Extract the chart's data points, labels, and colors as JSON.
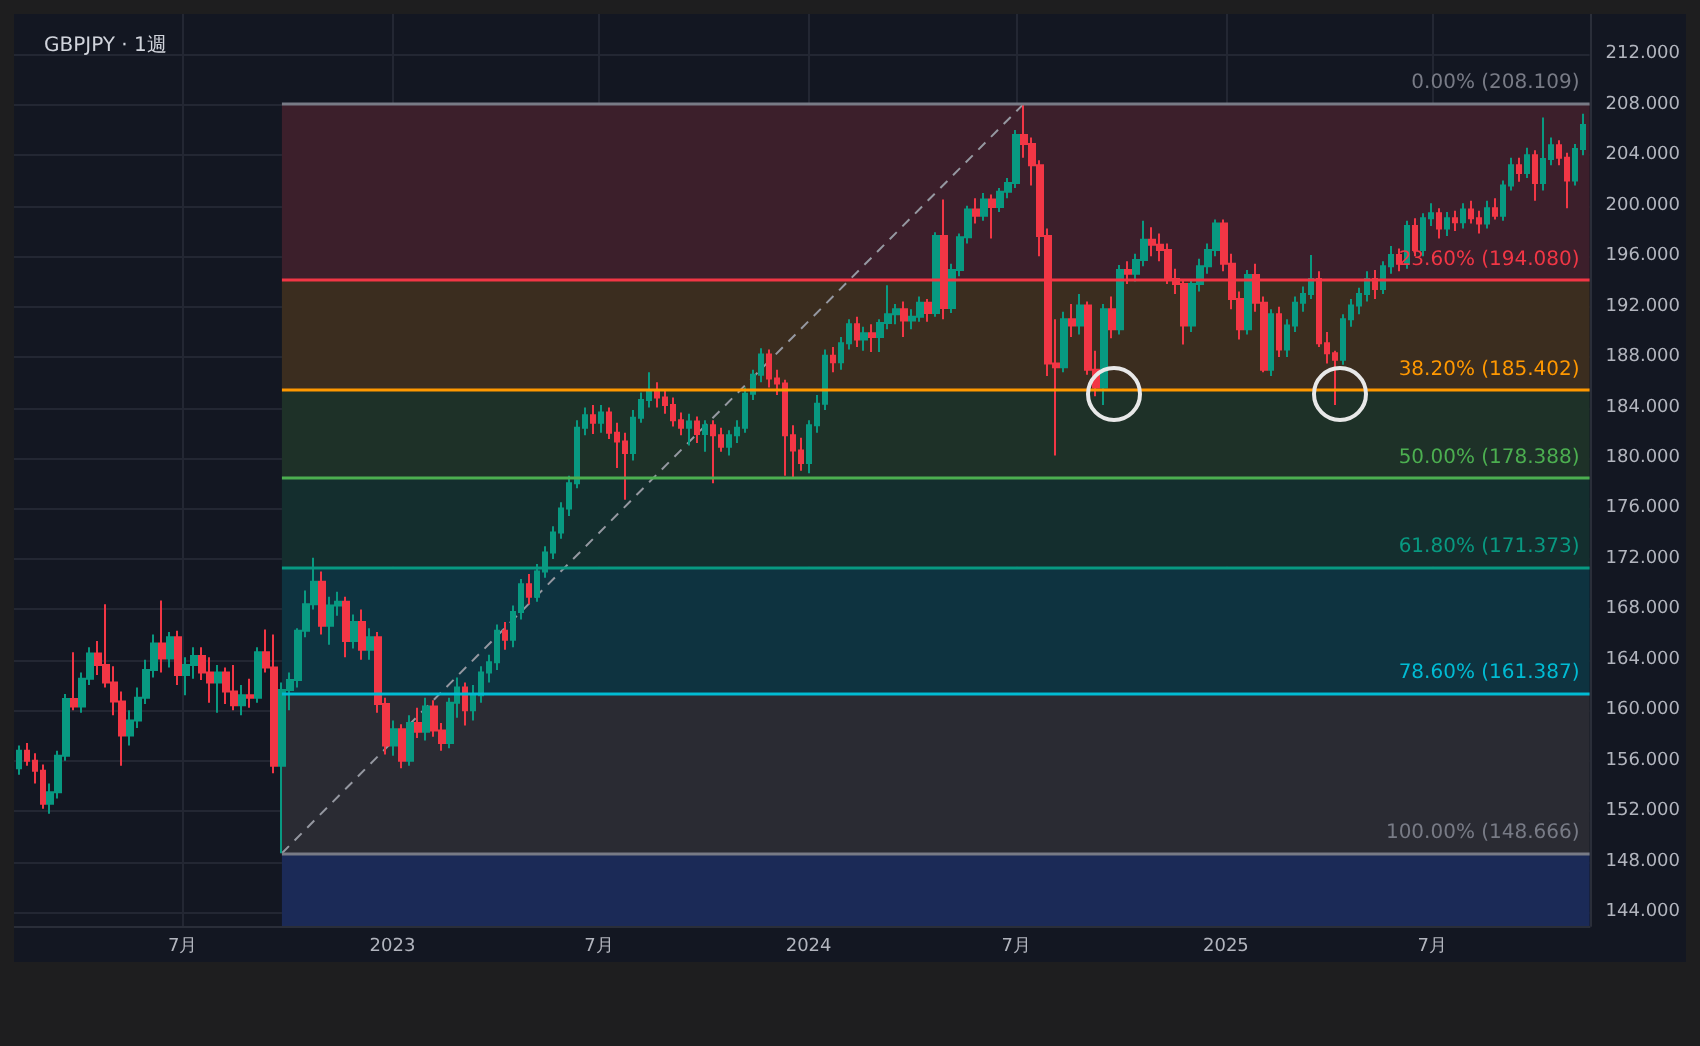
{
  "chart_data": {
    "type": "candlestick",
    "title": "GBPJPY · 1週",
    "x": [
      "2022-02-07",
      "2022-02-14",
      "2022-02-21",
      "2022-02-28",
      "2022-03-07",
      "2022-03-14",
      "2022-03-21",
      "2022-03-28",
      "2022-04-04",
      "2022-04-11",
      "2022-04-18",
      "2022-04-25",
      "2022-05-02",
      "2022-05-09",
      "2022-05-16",
      "2022-05-23",
      "2022-05-30",
      "2022-06-06",
      "2022-06-13",
      "2022-06-20",
      "2022-06-27",
      "2022-07-04",
      "2022-07-11",
      "2022-07-18",
      "2022-07-25",
      "2022-08-01",
      "2022-08-08",
      "2022-08-15",
      "2022-08-22",
      "2022-08-29",
      "2022-09-05",
      "2022-09-12",
      "2022-09-19",
      "2022-09-26",
      "2022-10-03",
      "2022-10-10",
      "2022-10-17",
      "2022-10-24",
      "2022-10-31",
      "2022-11-07",
      "2022-11-14",
      "2022-11-21",
      "2022-11-28",
      "2022-12-05",
      "2022-12-12",
      "2022-12-19",
      "2022-12-26",
      "2023-01-02",
      "2023-01-09",
      "2023-01-16",
      "2023-01-23",
      "2023-01-30",
      "2023-02-06",
      "2023-02-13",
      "2023-02-20",
      "2023-02-27",
      "2023-03-06",
      "2023-03-13",
      "2023-03-20",
      "2023-03-27",
      "2023-04-03",
      "2023-04-10",
      "2023-04-17",
      "2023-04-24",
      "2023-05-01",
      "2023-05-08",
      "2023-05-15",
      "2023-05-22",
      "2023-05-29",
      "2023-06-05",
      "2023-06-12",
      "2023-06-19",
      "2023-06-26",
      "2023-07-03",
      "2023-07-10",
      "2023-07-17",
      "2023-07-24",
      "2023-07-31",
      "2023-08-07",
      "2023-08-14",
      "2023-08-21",
      "2023-08-28",
      "2023-09-04",
      "2023-09-11",
      "2023-09-18",
      "2023-09-25",
      "2023-10-02",
      "2023-10-09",
      "2023-10-16",
      "2023-10-23",
      "2023-10-30",
      "2023-11-06",
      "2023-11-13",
      "2023-11-20",
      "2023-11-27",
      "2023-12-04",
      "2023-12-11",
      "2023-12-18",
      "2023-12-25",
      "2024-01-01",
      "2024-01-08",
      "2024-01-15",
      "2024-01-22",
      "2024-01-29",
      "2024-02-05",
      "2024-02-12",
      "2024-02-19",
      "2024-02-26",
      "2024-03-04",
      "2024-03-11",
      "2024-03-18",
      "2024-03-25",
      "2024-04-01",
      "2024-04-08",
      "2024-04-15",
      "2024-04-22",
      "2024-04-29",
      "2024-05-06",
      "2024-05-13",
      "2024-05-20",
      "2024-05-27",
      "2024-06-03",
      "2024-06-10",
      "2024-06-17",
      "2024-06-24",
      "2024-07-01",
      "2024-07-08",
      "2024-07-15",
      "2024-07-22",
      "2024-07-29",
      "2024-08-05",
      "2024-08-12",
      "2024-08-19",
      "2024-08-26",
      "2024-09-02",
      "2024-09-09",
      "2024-09-16",
      "2024-09-23",
      "2024-09-30",
      "2024-10-07",
      "2024-10-14",
      "2024-10-21",
      "2024-10-28",
      "2024-11-04",
      "2024-11-11",
      "2024-11-18",
      "2024-11-25",
      "2024-12-02",
      "2024-12-09",
      "2024-12-16",
      "2024-12-23",
      "2024-12-30",
      "2025-01-06",
      "2025-01-13",
      "2025-01-20",
      "2025-01-27",
      "2025-02-03",
      "2025-02-10",
      "2025-02-17",
      "2025-02-24",
      "2025-03-03",
      "2025-03-10",
      "2025-03-17",
      "2025-03-24",
      "2025-03-31",
      "2025-04-07",
      "2025-04-14",
      "2025-04-21",
      "2025-04-28",
      "2025-05-05",
      "2025-05-12",
      "2025-05-19",
      "2025-05-26",
      "2025-06-02",
      "2025-06-09",
      "2025-06-16",
      "2025-06-23",
      "2025-06-30",
      "2025-07-07",
      "2025-07-14",
      "2025-07-21",
      "2025-07-28",
      "2025-08-04",
      "2025-08-11",
      "2025-08-18",
      "2025-08-25",
      "2025-09-01",
      "2025-09-08",
      "2025-09-15",
      "2025-09-22",
      "2025-09-29",
      "2025-10-06",
      "2025-10-13",
      "2025-10-20",
      "2025-10-27",
      "2025-11-03",
      "2025-11-10"
    ],
    "ohlc": [
      [
        155.4,
        157.2,
        154.9,
        156.8
      ],
      [
        156.8,
        157.4,
        155.6,
        156.0
      ],
      [
        156.0,
        156.6,
        154.2,
        155.2
      ],
      [
        155.2,
        155.7,
        152.2,
        152.6
      ],
      [
        152.6,
        154.2,
        151.8,
        153.5
      ],
      [
        153.5,
        156.8,
        153.0,
        156.4
      ],
      [
        156.4,
        161.3,
        156.0,
        160.9
      ],
      [
        160.9,
        164.6,
        160.0,
        160.3
      ],
      [
        160.3,
        163.0,
        159.8,
        162.5
      ],
      [
        162.5,
        165.0,
        162.0,
        164.5
      ],
      [
        164.5,
        165.5,
        162.8,
        163.6
      ],
      [
        163.6,
        168.4,
        161.8,
        162.2
      ],
      [
        162.2,
        163.5,
        159.6,
        160.7
      ],
      [
        160.7,
        161.5,
        155.6,
        158.0
      ],
      [
        158.0,
        160.0,
        157.2,
        159.2
      ],
      [
        159.2,
        161.8,
        158.6,
        161.0
      ],
      [
        161.0,
        164.0,
        160.5,
        163.2
      ],
      [
        163.2,
        166.0,
        162.6,
        165.3
      ],
      [
        165.3,
        168.7,
        163.0,
        164.1
      ],
      [
        164.1,
        166.2,
        163.4,
        165.8
      ],
      [
        165.8,
        166.3,
        162.0,
        162.8
      ],
      [
        162.8,
        164.2,
        161.2,
        163.6
      ],
      [
        163.6,
        165.0,
        162.5,
        164.3
      ],
      [
        164.3,
        165.0,
        162.4,
        163.0
      ],
      [
        163.0,
        164.2,
        160.6,
        162.2
      ],
      [
        162.2,
        163.6,
        159.8,
        163.0
      ],
      [
        163.0,
        163.4,
        160.5,
        161.5
      ],
      [
        161.5,
        163.6,
        160.0,
        160.4
      ],
      [
        160.4,
        162.0,
        159.6,
        161.2
      ],
      [
        161.2,
        162.5,
        160.2,
        161.0
      ],
      [
        161.0,
        165.0,
        160.6,
        164.6
      ],
      [
        164.6,
        166.4,
        163.0,
        163.4
      ],
      [
        163.4,
        166.0,
        155.0,
        155.6
      ],
      [
        155.6,
        162.2,
        148.666,
        161.6
      ],
      [
        161.6,
        163.0,
        160.0,
        162.4
      ],
      [
        162.4,
        166.5,
        161.8,
        166.3
      ],
      [
        166.3,
        169.5,
        165.8,
        168.4
      ],
      [
        168.4,
        172.1,
        168.0,
        170.2
      ],
      [
        170.2,
        171.0,
        166.0,
        166.7
      ],
      [
        166.7,
        169.0,
        165.2,
        168.3
      ],
      [
        168.3,
        169.4,
        167.5,
        168.6
      ],
      [
        168.6,
        169.0,
        164.2,
        165.5
      ],
      [
        165.5,
        167.6,
        164.9,
        167.0
      ],
      [
        167.0,
        168.0,
        164.0,
        164.8
      ],
      [
        164.8,
        166.5,
        164.0,
        165.8
      ],
      [
        165.8,
        166.2,
        159.8,
        160.5
      ],
      [
        160.5,
        161.0,
        156.5,
        157.2
      ],
      [
        157.2,
        159.2,
        156.4,
        158.5
      ],
      [
        158.5,
        158.9,
        155.4,
        156.0
      ],
      [
        156.0,
        159.6,
        155.6,
        159.0
      ],
      [
        159.0,
        160.2,
        157.8,
        158.3
      ],
      [
        158.3,
        161.0,
        157.6,
        160.3
      ],
      [
        160.3,
        160.8,
        157.9,
        158.4
      ],
      [
        158.4,
        159.0,
        156.8,
        157.4
      ],
      [
        157.4,
        161.0,
        157.0,
        160.6
      ],
      [
        160.6,
        162.6,
        159.4,
        161.8
      ],
      [
        161.8,
        162.2,
        158.8,
        160.0
      ],
      [
        160.0,
        162.0,
        159.2,
        161.2
      ],
      [
        161.2,
        163.5,
        160.6,
        163.0
      ],
      [
        163.0,
        164.4,
        162.2,
        163.8
      ],
      [
        163.8,
        166.8,
        163.2,
        166.3
      ],
      [
        166.3,
        167.0,
        164.8,
        165.6
      ],
      [
        165.6,
        168.3,
        165.0,
        167.8
      ],
      [
        167.8,
        170.4,
        167.2,
        170.0
      ],
      [
        170.0,
        170.8,
        168.4,
        169.0
      ],
      [
        169.0,
        171.6,
        168.6,
        171.0
      ],
      [
        171.0,
        173.0,
        170.5,
        172.5
      ],
      [
        172.5,
        174.6,
        172.0,
        174.1
      ],
      [
        174.1,
        176.5,
        173.6,
        176.0
      ],
      [
        176.0,
        178.6,
        175.4,
        178.0
      ],
      [
        178.0,
        183.0,
        177.6,
        182.4
      ],
      [
        182.4,
        184.0,
        181.8,
        183.4
      ],
      [
        183.4,
        184.2,
        181.9,
        182.8
      ],
      [
        182.8,
        184.2,
        182.0,
        183.6
      ],
      [
        183.6,
        184.0,
        181.5,
        182.0
      ],
      [
        182.0,
        182.8,
        179.2,
        181.3
      ],
      [
        181.3,
        182.0,
        176.7,
        180.4
      ],
      [
        180.4,
        183.8,
        179.8,
        183.2
      ],
      [
        183.2,
        185.2,
        182.8,
        184.6
      ],
      [
        184.6,
        186.8,
        184.0,
        185.3
      ],
      [
        185.3,
        186.0,
        184.0,
        184.8
      ],
      [
        184.8,
        185.4,
        183.5,
        184.2
      ],
      [
        184.2,
        184.8,
        182.5,
        183.0
      ],
      [
        183.0,
        183.6,
        181.8,
        182.4
      ],
      [
        182.4,
        183.5,
        181.0,
        182.9
      ],
      [
        182.9,
        183.3,
        181.2,
        181.9
      ],
      [
        181.9,
        183.0,
        180.5,
        182.6
      ],
      [
        182.6,
        183.0,
        178.0,
        181.8
      ],
      [
        181.8,
        182.4,
        180.5,
        180.9
      ],
      [
        180.9,
        182.2,
        180.2,
        181.8
      ],
      [
        181.8,
        183.0,
        181.2,
        182.4
      ],
      [
        182.4,
        185.6,
        182.0,
        185.1
      ],
      [
        185.1,
        187.0,
        184.6,
        186.6
      ],
      [
        186.6,
        188.7,
        186.0,
        188.2
      ],
      [
        188.2,
        188.6,
        185.6,
        186.3
      ],
      [
        186.3,
        187.0,
        185.0,
        185.9
      ],
      [
        185.9,
        186.2,
        178.6,
        181.8
      ],
      [
        181.8,
        182.6,
        178.4,
        180.6
      ],
      [
        180.6,
        181.6,
        179.0,
        179.6
      ],
      [
        179.6,
        183.0,
        178.8,
        182.6
      ],
      [
        182.6,
        185.0,
        182.0,
        184.3
      ],
      [
        184.3,
        188.6,
        183.8,
        188.1
      ],
      [
        188.1,
        188.8,
        186.8,
        187.6
      ],
      [
        187.6,
        189.6,
        187.0,
        189.1
      ],
      [
        189.1,
        191.0,
        188.6,
        190.6
      ],
      [
        190.6,
        191.2,
        188.8,
        189.4
      ],
      [
        189.4,
        190.4,
        188.5,
        189.9
      ],
      [
        189.9,
        190.6,
        188.4,
        189.6
      ],
      [
        189.6,
        191.0,
        188.4,
        190.7
      ],
      [
        190.7,
        193.7,
        190.2,
        191.4
      ],
      [
        191.4,
        192.2,
        190.6,
        191.8
      ],
      [
        191.8,
        192.4,
        189.6,
        190.9
      ],
      [
        190.9,
        191.8,
        190.2,
        191.2
      ],
      [
        191.2,
        192.8,
        190.8,
        192.3
      ],
      [
        192.3,
        192.6,
        190.8,
        191.5
      ],
      [
        191.5,
        197.9,
        191.2,
        197.6
      ],
      [
        197.6,
        200.5,
        191.0,
        191.9
      ],
      [
        191.9,
        195.4,
        191.5,
        194.9
      ],
      [
        194.9,
        197.8,
        194.4,
        197.5
      ],
      [
        197.5,
        200.0,
        197.0,
        199.7
      ],
      [
        199.7,
        200.6,
        198.6,
        199.2
      ],
      [
        199.2,
        201.0,
        198.8,
        200.5
      ],
      [
        200.5,
        200.9,
        197.4,
        199.9
      ],
      [
        199.9,
        201.4,
        199.5,
        201.1
      ],
      [
        201.1,
        202.2,
        200.6,
        201.8
      ],
      [
        201.8,
        206.0,
        201.4,
        205.6
      ],
      [
        205.6,
        208.109,
        203.8,
        204.9
      ],
      [
        204.9,
        205.4,
        201.6,
        203.2
      ],
      [
        203.2,
        203.6,
        196.0,
        197.6
      ],
      [
        197.6,
        198.2,
        186.5,
        187.5
      ],
      [
        187.5,
        191.0,
        180.2,
        187.2
      ],
      [
        187.2,
        191.6,
        186.8,
        191.0
      ],
      [
        191.0,
        192.2,
        189.6,
        190.5
      ],
      [
        190.5,
        193.0,
        189.8,
        192.1
      ],
      [
        192.1,
        192.4,
        186.6,
        187.0
      ],
      [
        187.0,
        188.5,
        184.9,
        185.6
      ],
      [
        185.6,
        192.2,
        184.2,
        191.8
      ],
      [
        191.8,
        192.8,
        189.5,
        190.2
      ],
      [
        190.2,
        195.3,
        189.8,
        194.9
      ],
      [
        194.9,
        195.6,
        193.8,
        194.6
      ],
      [
        194.6,
        196.2,
        194.0,
        195.7
      ],
      [
        195.7,
        198.8,
        195.2,
        197.3
      ],
      [
        197.3,
        198.3,
        196.0,
        196.9
      ],
      [
        196.9,
        197.8,
        195.6,
        196.5
      ],
      [
        196.5,
        197.0,
        193.8,
        194.2
      ],
      [
        194.2,
        195.0,
        193.0,
        193.8
      ],
      [
        193.8,
        194.2,
        189.0,
        190.5
      ],
      [
        190.5,
        194.2,
        190.0,
        193.8
      ],
      [
        193.8,
        195.8,
        193.2,
        195.2
      ],
      [
        195.2,
        197.0,
        194.6,
        196.5
      ],
      [
        196.5,
        198.9,
        196.0,
        198.6
      ],
      [
        198.6,
        198.9,
        194.8,
        195.4
      ],
      [
        195.4,
        196.2,
        191.8,
        192.6
      ],
      [
        192.6,
        193.2,
        189.4,
        190.2
      ],
      [
        190.2,
        194.9,
        189.8,
        194.5
      ],
      [
        194.5,
        195.4,
        191.6,
        192.3
      ],
      [
        192.3,
        192.8,
        186.8,
        187.0
      ],
      [
        187.0,
        191.8,
        186.5,
        191.4
      ],
      [
        191.4,
        192.0,
        188.0,
        188.6
      ],
      [
        188.6,
        191.0,
        188.0,
        190.5
      ],
      [
        190.5,
        192.8,
        190.0,
        192.3
      ],
      [
        192.3,
        193.6,
        191.6,
        193.0
      ],
      [
        193.0,
        196.1,
        192.6,
        194.2
      ],
      [
        194.2,
        194.8,
        188.8,
        189.1
      ],
      [
        189.1,
        190.0,
        187.5,
        188.3
      ],
      [
        188.3,
        188.5,
        184.2,
        187.8
      ],
      [
        187.8,
        191.4,
        187.4,
        191.0
      ],
      [
        191.0,
        192.6,
        190.4,
        192.1
      ],
      [
        192.1,
        193.5,
        191.4,
        193.0
      ],
      [
        193.0,
        194.8,
        192.4,
        194.2
      ],
      [
        194.2,
        194.9,
        192.6,
        193.4
      ],
      [
        193.4,
        195.6,
        193.0,
        195.2
      ],
      [
        195.2,
        196.8,
        194.6,
        196.1
      ],
      [
        196.1,
        196.6,
        194.8,
        195.4
      ],
      [
        195.4,
        198.8,
        195.0,
        198.4
      ],
      [
        198.4,
        199.0,
        196.0,
        196.5
      ],
      [
        196.5,
        199.4,
        196.0,
        199.0
      ],
      [
        199.0,
        200.2,
        198.4,
        199.4
      ],
      [
        199.4,
        199.8,
        197.4,
        198.2
      ],
      [
        198.2,
        199.5,
        197.6,
        199.0
      ],
      [
        199.0,
        199.6,
        198.0,
        198.7
      ],
      [
        198.7,
        200.2,
        198.2,
        199.7
      ],
      [
        199.7,
        200.4,
        198.6,
        199.0
      ],
      [
        199.0,
        199.6,
        197.8,
        198.6
      ],
      [
        198.6,
        200.4,
        198.2,
        199.8
      ],
      [
        199.8,
        200.6,
        198.9,
        199.2
      ],
      [
        199.2,
        202.0,
        198.8,
        201.6
      ],
      [
        201.6,
        203.8,
        201.2,
        203.2
      ],
      [
        203.2,
        203.8,
        201.9,
        202.6
      ],
      [
        202.6,
        204.6,
        202.2,
        204.0
      ],
      [
        204.0,
        204.4,
        200.4,
        201.8
      ],
      [
        201.8,
        207.0,
        201.2,
        203.7
      ],
      [
        203.7,
        205.4,
        203.2,
        204.8
      ],
      [
        204.8,
        205.2,
        203.2,
        203.8
      ],
      [
        203.8,
        204.2,
        199.8,
        202.0
      ],
      [
        202.0,
        204.9,
        201.6,
        204.5
      ],
      [
        204.5,
        207.3,
        204.0,
        206.4
      ]
    ],
    "colors": [
      "#089981",
      "#f23645",
      "#f23645",
      "#f23645",
      "#089981",
      "#089981",
      "#089981",
      "#f23645",
      "#089981",
      "#089981",
      "#f23645",
      "#f23645",
      "#f23645",
      "#f23645",
      "#089981",
      "#089981",
      "#089981",
      "#089981",
      "#f23645",
      "#089981",
      "#f23645",
      "#089981",
      "#089981",
      "#f23645",
      "#f23645",
      "#089981",
      "#f23645",
      "#f23645",
      "#089981",
      "#f23645",
      "#089981",
      "#f23645",
      "#f23645",
      "#089981",
      "#089981",
      "#089981",
      "#089981",
      "#089981",
      "#f23645",
      "#089981",
      "#089981",
      "#f23645",
      "#089981",
      "#f23645",
      "#089981",
      "#f23645",
      "#f23645",
      "#089981",
      "#f23645",
      "#089981",
      "#f23645",
      "#089981",
      "#f23645",
      "#f23645",
      "#089981",
      "#089981",
      "#f23645",
      "#089981",
      "#089981",
      "#089981",
      "#089981",
      "#f23645",
      "#089981",
      "#089981",
      "#f23645",
      "#089981",
      "#089981",
      "#089981",
      "#089981",
      "#089981",
      "#089981",
      "#089981",
      "#f23645",
      "#089981",
      "#f23645",
      "#f23645",
      "#f23645",
      "#089981",
      "#089981",
      "#089981",
      "#f23645",
      "#f23645",
      "#f23645",
      "#f23645",
      "#089981",
      "#f23645",
      "#089981",
      "#f23645",
      "#f23645",
      "#089981",
      "#089981",
      "#089981",
      "#089981",
      "#089981",
      "#f23645",
      "#f23645",
      "#f23645",
      "#f23645",
      "#f23645",
      "#089981",
      "#089981",
      "#089981",
      "#f23645",
      "#089981",
      "#089981",
      "#f23645",
      "#089981",
      "#f23645",
      "#089981",
      "#089981",
      "#089981",
      "#f23645",
      "#089981",
      "#089981",
      "#f23645",
      "#089981",
      "#f23645",
      "#089981",
      "#089981",
      "#089981",
      "#f23645",
      "#089981",
      "#f23645",
      "#089981",
      "#089981",
      "#089981",
      "#f23645",
      "#f23645",
      "#f23645",
      "#f23645",
      "#f23645",
      "#089981",
      "#f23645",
      "#089981",
      "#f23645",
      "#f23645",
      "#089981",
      "#f23645",
      "#089981",
      "#f23645",
      "#089981",
      "#089981",
      "#f23645",
      "#f23645",
      "#f23645",
      "#f23645",
      "#f23645",
      "#089981",
      "#089981",
      "#089981",
      "#089981",
      "#f23645",
      "#f23645",
      "#f23645",
      "#089981",
      "#f23645",
      "#f23645",
      "#089981",
      "#f23645",
      "#089981",
      "#089981",
      "#089981",
      "#089981",
      "#f23645",
      "#f23645",
      "#f23645",
      "#089981",
      "#089981",
      "#089981",
      "#089981",
      "#f23645",
      "#089981",
      "#089981",
      "#f23645",
      "#089981",
      "#f23645",
      "#089981",
      "#089981",
      "#f23645",
      "#089981",
      "#f23645",
      "#089981",
      "#f23645",
      "#f23645",
      "#089981",
      "#f23645",
      "#089981",
      "#089981",
      "#f23645",
      "#089981",
      "#f23645",
      "#089981",
      "#089981",
      "#f23645",
      "#f23645",
      "#089981",
      "#089981"
    ],
    "series": [
      {
        "type": "line",
        "x": [
          "2022-09-26",
          "2024-07-08"
        ],
        "values": [
          148.666,
          208.109
        ],
        "color": "#9598a1",
        "line_style": "dashed"
      }
    ],
    "xlim": [
      "2022-02-03",
      "2025-11-16"
    ],
    "xticks": [
      {
        "value": "2022-07-01",
        "label": "7月"
      },
      {
        "value": "2023-01-01",
        "label": "2023"
      },
      {
        "value": "2023-07-01",
        "label": "7月"
      },
      {
        "value": "2024-01-01",
        "label": "2024"
      },
      {
        "value": "2024-07-01",
        "label": "7月"
      },
      {
        "value": "2025-01-01",
        "label": "2025"
      },
      {
        "value": "2025-07-01",
        "label": "7月"
      }
    ],
    "ylim": [
      142.9,
      215.2
    ],
    "yticks": [
      {
        "value": 144,
        "label": "144.000"
      },
      {
        "value": 148,
        "label": "148.000"
      },
      {
        "value": 152,
        "label": "152.000"
      },
      {
        "value": 156,
        "label": "156.000"
      },
      {
        "value": 160,
        "label": "160.000"
      },
      {
        "value": 164,
        "label": "164.000"
      },
      {
        "value": 168,
        "label": "168.000"
      },
      {
        "value": 172,
        "label": "172.000"
      },
      {
        "value": 176,
        "label": "176.000"
      },
      {
        "value": 180,
        "label": "180.000"
      },
      {
        "value": 184,
        "label": "184.000"
      },
      {
        "value": 188,
        "label": "188.000"
      },
      {
        "value": 192,
        "label": "192.000"
      },
      {
        "value": 196,
        "label": "196.000"
      },
      {
        "value": 200,
        "label": "200.000"
      },
      {
        "value": 204,
        "label": "204.000"
      },
      {
        "value": 208,
        "label": "208.000"
      },
      {
        "value": 212,
        "label": "212.000"
      }
    ],
    "ref_lines": [
      {
        "axis": "y",
        "value": 208.109,
        "label": "0.00% (208.109)",
        "color": "#787b86"
      },
      {
        "axis": "y",
        "value": 194.08,
        "label": "23.60% (194.080)",
        "color": "#f23645"
      },
      {
        "axis": "y",
        "value": 185.402,
        "label": "38.20% (185.402)",
        "color": "#ff9800"
      },
      {
        "axis": "y",
        "value": 178.388,
        "label": "50.00% (178.388)",
        "color": "#4caf50"
      },
      {
        "axis": "y",
        "value": 171.373,
        "label": "61.80% (171.373)",
        "color": "#089981"
      },
      {
        "axis": "y",
        "value": 161.387,
        "label": "78.60% (161.387)",
        "color": "#00bcd4"
      },
      {
        "axis": "y",
        "value": 148.666,
        "label": "100.00% (148.666)",
        "color": "#787b86"
      }
    ],
    "bands": [
      {
        "axis": "y",
        "from": 194.08,
        "to": 208.109,
        "color": "#3c1f2b"
      },
      {
        "axis": "y",
        "from": 185.402,
        "to": 194.08,
        "color": "#3b2d1f"
      },
      {
        "axis": "y",
        "from": 178.388,
        "to": 185.402,
        "color": "#1e3128"
      },
      {
        "axis": "y",
        "from": 171.373,
        "to": 178.388,
        "color": "#142e2e"
      },
      {
        "axis": "y",
        "from": 161.387,
        "to": 171.373,
        "color": "#0e3340"
      },
      {
        "axis": "y",
        "from": 148.666,
        "to": 161.387,
        "color": "#2a2b33"
      },
      {
        "axis": "y",
        "from": 142.9,
        "to": 148.666,
        "color": "#1b2a57"
      }
    ],
    "grid": true,
    "marker": "none"
  }
}
